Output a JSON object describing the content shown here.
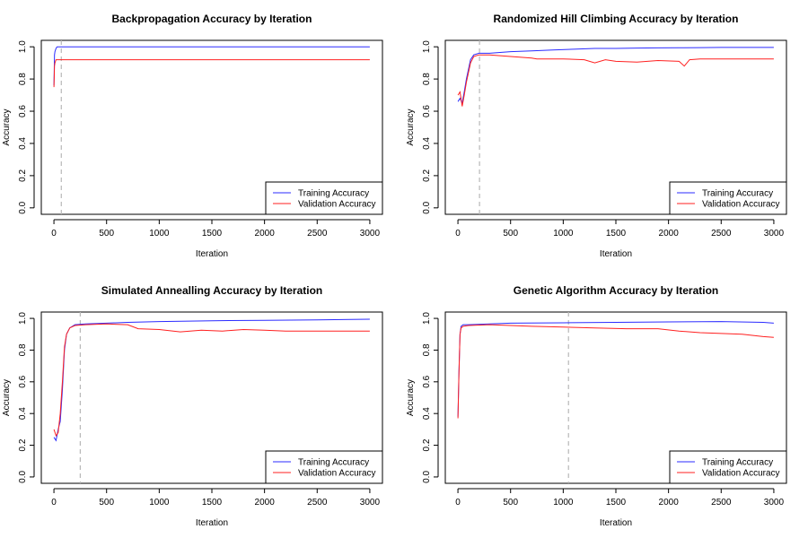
{
  "colors": {
    "training": "#2b2bff",
    "validation": "#ff2020",
    "vline": "#b8b8b8"
  },
  "chart_data": [
    {
      "type": "line",
      "title": "Backpropagation Accuracy by Iteration",
      "xlabel": "Iteration",
      "ylabel": "Accuracy",
      "xlim": [
        0,
        3000
      ],
      "ylim": [
        0,
        1
      ],
      "xticks": [
        0,
        500,
        1000,
        1500,
        2000,
        2500,
        3000
      ],
      "yticks": [
        0.0,
        0.2,
        0.4,
        0.6,
        0.8,
        1.0
      ],
      "ytick_labels": [
        "0.0",
        "0.2",
        "0.4",
        "0.6",
        "0.8",
        "1.0"
      ],
      "vline": 70,
      "legend": "bottom-right",
      "series": [
        {
          "name": "Training Accuracy",
          "color": "blue",
          "x": [
            0,
            5,
            10,
            20,
            30,
            50,
            100,
            3000
          ],
          "y": [
            0.76,
            0.95,
            0.97,
            0.99,
            1.0,
            1.0,
            1.0,
            1.0
          ]
        },
        {
          "name": "Validation Accuracy",
          "color": "red",
          "x": [
            0,
            5,
            10,
            20,
            30,
            50,
            100,
            3000
          ],
          "y": [
            0.75,
            0.88,
            0.9,
            0.92,
            0.92,
            0.92,
            0.92,
            0.92
          ]
        }
      ]
    },
    {
      "type": "line",
      "title": "Randomized Hill Climbing Accuracy by Iteration",
      "xlabel": "Iteration",
      "ylabel": "Accuracy",
      "xlim": [
        0,
        3000
      ],
      "ylim": [
        0,
        1
      ],
      "xticks": [
        0,
        500,
        1000,
        1500,
        2000,
        2500,
        3000
      ],
      "yticks": [
        0.0,
        0.2,
        0.4,
        0.6,
        0.8,
        1.0
      ],
      "ytick_labels": [
        "0.0",
        "0.2",
        "0.4",
        "0.6",
        "0.8",
        "1.0"
      ],
      "vline": 205,
      "legend": "bottom-right",
      "series": [
        {
          "name": "Training Accuracy",
          "color": "blue",
          "x": [
            0,
            20,
            40,
            60,
            80,
            100,
            120,
            150,
            200,
            300,
            500,
            700,
            900,
            1100,
            1300,
            1500,
            1700,
            1900,
            2100,
            2300,
            2500,
            2700,
            3000
          ],
          "y": [
            0.66,
            0.68,
            0.65,
            0.72,
            0.8,
            0.86,
            0.92,
            0.95,
            0.96,
            0.96,
            0.97,
            0.975,
            0.98,
            0.985,
            0.99,
            0.99,
            0.992,
            0.993,
            0.994,
            0.995,
            0.996,
            0.996,
            0.996
          ]
        },
        {
          "name": "Validation Accuracy",
          "color": "red",
          "x": [
            0,
            20,
            40,
            60,
            80,
            100,
            120,
            150,
            200,
            300,
            500,
            700,
            750,
            1000,
            1200,
            1300,
            1400,
            1500,
            1700,
            1900,
            2100,
            2150,
            2200,
            2300,
            2500,
            2700,
            3000
          ],
          "y": [
            0.7,
            0.72,
            0.63,
            0.7,
            0.78,
            0.84,
            0.9,
            0.94,
            0.95,
            0.95,
            0.94,
            0.93,
            0.925,
            0.925,
            0.92,
            0.9,
            0.92,
            0.91,
            0.905,
            0.915,
            0.91,
            0.88,
            0.92,
            0.925,
            0.925,
            0.925,
            0.925
          ]
        }
      ]
    },
    {
      "type": "line",
      "title": "Simulated Annealling Accuracy by Iteration",
      "xlabel": "Iteration",
      "ylabel": "Accuracy",
      "xlim": [
        0,
        3000
      ],
      "ylim": [
        0,
        1
      ],
      "xticks": [
        0,
        500,
        1000,
        1500,
        2000,
        2500,
        3000
      ],
      "yticks": [
        0.0,
        0.2,
        0.4,
        0.6,
        0.8,
        1.0
      ],
      "ytick_labels": [
        "0.0",
        "0.2",
        "0.4",
        "0.6",
        "0.8",
        "1.0"
      ],
      "vline": 250,
      "legend": "bottom-right",
      "series": [
        {
          "name": "Training Accuracy",
          "color": "blue",
          "x": [
            0,
            20,
            40,
            60,
            80,
            100,
            120,
            150,
            200,
            300,
            500,
            700,
            1000,
            1500,
            2000,
            2500,
            3000
          ],
          "y": [
            0.25,
            0.23,
            0.3,
            0.35,
            0.55,
            0.8,
            0.9,
            0.94,
            0.96,
            0.965,
            0.97,
            0.975,
            0.98,
            0.985,
            0.988,
            0.99,
            0.995
          ]
        },
        {
          "name": "Validation Accuracy",
          "color": "red",
          "x": [
            0,
            20,
            40,
            60,
            80,
            100,
            120,
            150,
            200,
            300,
            500,
            700,
            800,
            1000,
            1200,
            1400,
            1600,
            1800,
            2000,
            2200,
            2500,
            2800,
            3000
          ],
          "y": [
            0.3,
            0.26,
            0.28,
            0.4,
            0.6,
            0.82,
            0.9,
            0.94,
            0.955,
            0.96,
            0.965,
            0.96,
            0.935,
            0.93,
            0.915,
            0.925,
            0.92,
            0.93,
            0.925,
            0.92,
            0.92,
            0.92,
            0.92
          ]
        }
      ]
    },
    {
      "type": "line",
      "title": "Genetic Algorithm Accuracy by Iteration",
      "xlabel": "Iteration",
      "ylabel": "Accuracy",
      "xlim": [
        0,
        3000
      ],
      "ylim": [
        0,
        1
      ],
      "xticks": [
        0,
        500,
        1000,
        1500,
        2000,
        2500,
        3000
      ],
      "yticks": [
        0.0,
        0.2,
        0.4,
        0.6,
        0.8,
        1.0
      ],
      "ytick_labels": [
        "0.0",
        "0.2",
        "0.4",
        "0.6",
        "0.8",
        "1.0"
      ],
      "vline": 1050,
      "legend": "bottom-right",
      "series": [
        {
          "name": "Training Accuracy",
          "color": "blue",
          "x": [
            0,
            10,
            20,
            30,
            50,
            100,
            300,
            500,
            1000,
            1500,
            2000,
            2500,
            2900,
            3000
          ],
          "y": [
            0.38,
            0.66,
            0.9,
            0.95,
            0.96,
            0.96,
            0.965,
            0.97,
            0.972,
            0.975,
            0.978,
            0.98,
            0.975,
            0.97
          ]
        },
        {
          "name": "Validation Accuracy",
          "color": "red",
          "x": [
            0,
            10,
            20,
            30,
            50,
            100,
            300,
            500,
            700,
            1000,
            1300,
            1600,
            1900,
            2100,
            2300,
            2500,
            2700,
            2900,
            3000
          ],
          "y": [
            0.37,
            0.65,
            0.9,
            0.94,
            0.95,
            0.955,
            0.96,
            0.955,
            0.95,
            0.945,
            0.94,
            0.935,
            0.935,
            0.92,
            0.91,
            0.905,
            0.9,
            0.885,
            0.88
          ]
        }
      ]
    }
  ]
}
